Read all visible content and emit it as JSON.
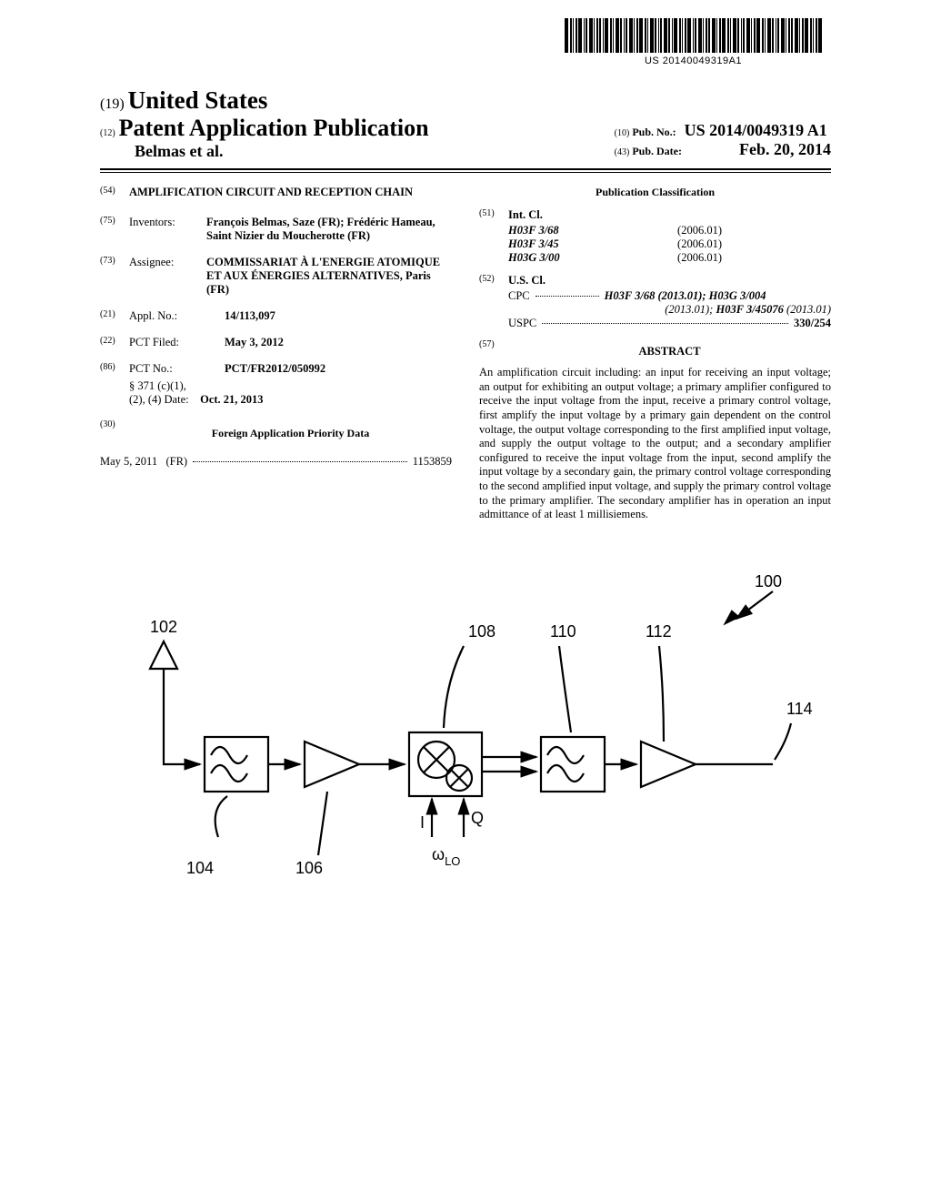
{
  "barcode_text": "US 20140049319A1",
  "header": {
    "country_num": "(19)",
    "country": "United States",
    "pub_type_num": "(12)",
    "pub_type": "Patent Application Publication",
    "authors": "Belmas et al.",
    "pub_no_num": "(10)",
    "pub_no_label": "Pub. No.:",
    "pub_no": "US 2014/0049319 A1",
    "pub_date_num": "(43)",
    "pub_date_label": "Pub. Date:",
    "pub_date": "Feb. 20, 2014"
  },
  "left": {
    "title_num": "(54)",
    "title": "AMPLIFICATION CIRCUIT AND RECEPTION CHAIN",
    "inventors_num": "(75)",
    "inventors_label": "Inventors:",
    "inventors": "François Belmas, Saze (FR); Frédéric Hameau, Saint Nizier du Moucherotte (FR)",
    "assignee_num": "(73)",
    "assignee_label": "Assignee:",
    "assignee": "COMMISSARIAT À L'ENERGIE ATOMIQUE ET AUX ÉNERGIES ALTERNATIVES, Paris (FR)",
    "appl_num": "(21)",
    "appl_label": "Appl. No.:",
    "appl_val": "14/113,097",
    "pct_filed_num": "(22)",
    "pct_filed_label": "PCT Filed:",
    "pct_filed_val": "May 3, 2012",
    "pct_no_num": "(86)",
    "pct_no_label": "PCT No.:",
    "pct_no_val": "PCT/FR2012/050992",
    "section_label": "§ 371 (c)(1),",
    "section_date_label": "(2), (4) Date:",
    "section_date_val": "Oct. 21, 2013",
    "priority_num": "(30)",
    "priority_title": "Foreign Application Priority Data",
    "priority_date": "May 5, 2011",
    "priority_country": "(FR)",
    "priority_no": "1153859"
  },
  "right": {
    "class_title": "Publication Classification",
    "intcl_num": "(51)",
    "intcl_label": "Int. Cl.",
    "intcl": [
      {
        "code": "H03F 3/68",
        "year": "(2006.01)"
      },
      {
        "code": "H03F 3/45",
        "year": "(2006.01)"
      },
      {
        "code": "H03G 3/00",
        "year": "(2006.01)"
      }
    ],
    "uscl_num": "(52)",
    "uscl_label": "U.S. Cl.",
    "cpc_label": "CPC",
    "cpc_val1": "H03F 3/68 (2013.01); H03G 3/004",
    "cpc_val2": "(2013.01); H03F 3/45076 (2013.01)",
    "uspc_label": "USPC",
    "uspc_val": "330/254",
    "abstract_num": "(57)",
    "abstract_title": "ABSTRACT",
    "abstract_body": "An amplification circuit including: an input for receiving an input voltage; an output for exhibiting an output voltage; a primary amplifier configured to receive the input voltage from the input, receive a primary control voltage, first amplify the input voltage by a primary gain dependent on the control voltage, the output voltage corresponding to the first amplified input voltage, and supply the output voltage to the output; and a secondary amplifier configured to receive the input voltage from the input, second amplify the input voltage by a secondary gain, the primary control voltage corresponding to the second amplified input voltage, and supply the primary control voltage to the primary amplifier. The secondary amplifier has in operation an input admittance of at least 1 millisiemens."
  },
  "diagram": {
    "labels": {
      "ref100": "100",
      "ref102": "102",
      "ref104": "104",
      "ref106": "106",
      "ref108": "108",
      "ref110": "110",
      "ref112": "112",
      "ref114": "114",
      "I": "I",
      "Q": "Q",
      "omega": "ω",
      "lo": "LO"
    },
    "colors": {
      "stroke": "#000000",
      "background": "#ffffff"
    }
  }
}
